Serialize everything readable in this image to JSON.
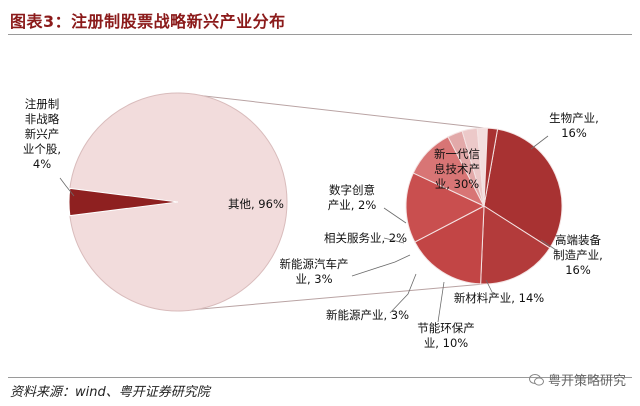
{
  "title": "图表3：注册制股票战略新兴产业分布",
  "source": "资料来源：wind、粤开证券研究院",
  "watermark": "粤开策略研究",
  "colors": {
    "title": "#8b1a1a",
    "main_pie_other": "#f2dcdc",
    "main_pie_strategic": "#8e2020",
    "sub_pie": [
      "#a83232",
      "#b33b3b",
      "#c24545",
      "#c94f4f",
      "#d87575",
      "#e2a9a9",
      "#ecc9c9",
      "#f3dede"
    ],
    "connector": "#b9a3a3"
  },
  "chart_data": {
    "type": "pie",
    "main_pie": {
      "slices": [
        {
          "name": "其他",
          "value": 96,
          "label": "其他, 96%"
        },
        {
          "name": "注册制非战略新兴产业个股",
          "value": 4,
          "label_lines": [
            "注册制",
            "非战略",
            "新兴产",
            "业个股,",
            "4%"
          ]
        }
      ]
    },
    "sub_pie": {
      "slices": [
        {
          "name": "新一代信息技术产业",
          "value": 30,
          "label_lines": [
            "新一代信",
            "息技术产",
            "业, 30%"
          ]
        },
        {
          "name": "生物产业",
          "value": 16,
          "label_lines": [
            "生物产业,",
            "16%"
          ]
        },
        {
          "name": "高端装备制造产业",
          "value": 16,
          "label_lines": [
            "高端装备",
            "制造产业,",
            "16%"
          ]
        },
        {
          "name": "新材料产业",
          "value": 14,
          "label_lines": [
            "新材料产业, 14%"
          ]
        },
        {
          "name": "节能环保产业",
          "value": 10,
          "label_lines": [
            "节能环保产",
            "业, 10%"
          ]
        },
        {
          "name": "新能源产业",
          "value": 3,
          "label_lines": [
            "新能源产业, 3%"
          ]
        },
        {
          "name": "新能源汽车产业",
          "value": 3,
          "label_lines": [
            "新能源汽车产",
            "业, 3%"
          ]
        },
        {
          "name": "相关服务业",
          "value": 2,
          "label_lines": [
            "相关服务业, 2%"
          ]
        },
        {
          "name": "数字创意产业",
          "value": 2,
          "label_lines": [
            "数字创意",
            "产业, 2%"
          ]
        }
      ]
    }
  }
}
